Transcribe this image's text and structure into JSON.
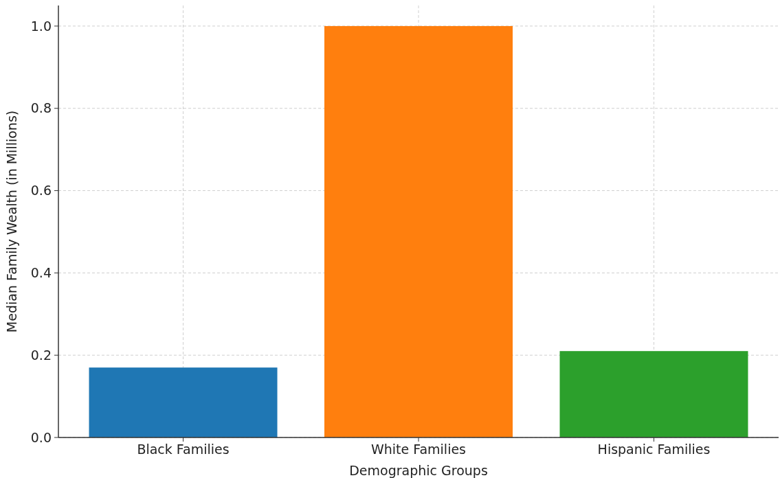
{
  "chart_data": {
    "type": "bar",
    "xlabel": "Demographic Groups",
    "ylabel": "Median Family Wealth (in Millions)",
    "categories": [
      "Black Families",
      "White Families",
      "Hispanic Families"
    ],
    "values": [
      0.17,
      1.0,
      0.21
    ],
    "colors": [
      "#1f77b4",
      "#ff7f0e",
      "#2ca02c"
    ],
    "ylim": [
      0,
      1.05
    ],
    "yticks": [
      {
        "value": 0,
        "label": "0.0"
      },
      {
        "value": 0.2,
        "label": "0.2"
      },
      {
        "value": 0.4,
        "label": "0.4"
      },
      {
        "value": 0.6,
        "label": "0.6"
      },
      {
        "value": 0.8,
        "label": "0.8"
      },
      {
        "value": 1.0,
        "label": "1.0"
      }
    ],
    "grid": true
  }
}
